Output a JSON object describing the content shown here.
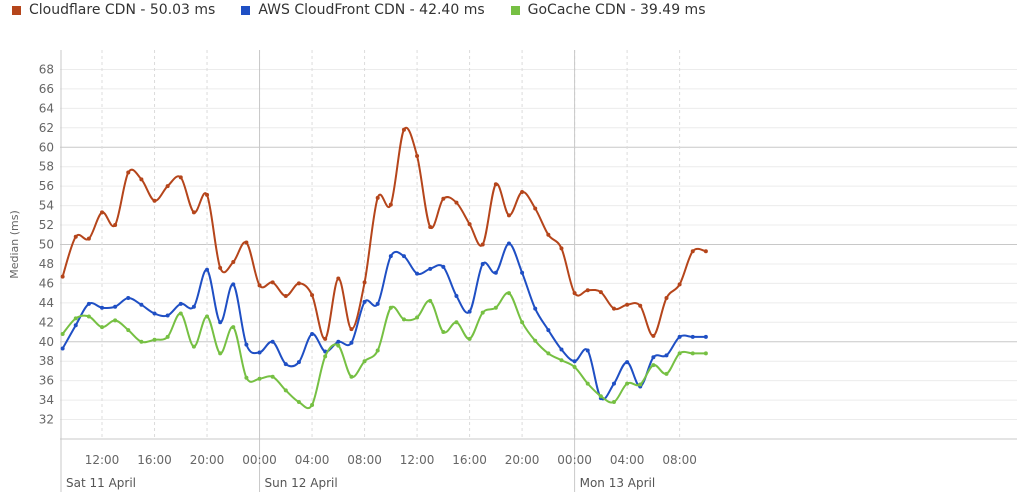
{
  "chart_data": {
    "type": "line",
    "ylabel": "Median (ms)",
    "ylim": [
      30,
      70
    ],
    "yticks": [
      32,
      34,
      36,
      38,
      40,
      42,
      44,
      46,
      48,
      50,
      52,
      54,
      56,
      58,
      60,
      62,
      64,
      66,
      68
    ],
    "xlim_hours": [
      8.8,
      81.7
    ],
    "xticks": [
      {
        "hour": 12,
        "label": "12:00"
      },
      {
        "hour": 16,
        "label": "16:00"
      },
      {
        "hour": 20,
        "label": "20:00"
      },
      {
        "hour": 24,
        "label": "00:00"
      },
      {
        "hour": 28,
        "label": "04:00"
      },
      {
        "hour": 32,
        "label": "08:00"
      },
      {
        "hour": 36,
        "label": "12:00"
      },
      {
        "hour": 40,
        "label": "16:00"
      },
      {
        "hour": 44,
        "label": "20:00"
      },
      {
        "hour": 48,
        "label": "00:00"
      },
      {
        "hour": 52,
        "label": "04:00"
      },
      {
        "hour": 56,
        "label": "08:00"
      }
    ],
    "days": [
      {
        "hour": 9,
        "label": "Sat 11 April"
      },
      {
        "hour": 24,
        "label": "Sun 12 April"
      },
      {
        "hour": 48,
        "label": "Mon 13 April"
      }
    ],
    "grid": true,
    "legend_position": "top-left",
    "series": [
      {
        "name": "Cloudflare CDN - 50.03 ms",
        "color": "#b5451b",
        "hours": [
          9,
          10,
          11,
          12,
          13,
          14,
          15,
          16,
          17,
          18,
          19,
          20,
          21,
          22,
          23,
          24,
          25,
          26,
          27,
          28,
          29,
          30,
          31,
          32,
          33,
          34,
          35,
          36,
          37,
          38,
          39,
          40,
          41,
          42,
          43,
          44,
          45,
          46,
          47,
          48,
          49,
          50,
          51,
          52,
          53,
          54,
          55,
          56,
          57,
          58
        ],
        "values": [
          46.7,
          50.8,
          50.6,
          53.3,
          52.0,
          57.4,
          56.7,
          54.5,
          56.0,
          56.9,
          53.3,
          55.1,
          47.6,
          48.2,
          50.2,
          45.8,
          46.1,
          44.7,
          46.0,
          44.8,
          40.3,
          46.5,
          41.3,
          46.1,
          54.8,
          54.1,
          61.8,
          59.1,
          51.8,
          54.7,
          54.3,
          52.1,
          50.0,
          56.2,
          53.0,
          55.4,
          53.7,
          51.0,
          49.6,
          45.0,
          45.3,
          45.1,
          43.4,
          43.8,
          43.7,
          40.6,
          44.5,
          45.9,
          49.3,
          49.3
        ]
      },
      {
        "name": "AWS CloudFront CDN - 42.40 ms",
        "color": "#1f4fc4",
        "hours": [
          9,
          10,
          11,
          12,
          13,
          14,
          15,
          16,
          17,
          18,
          19,
          20,
          21,
          22,
          23,
          24,
          25,
          26,
          27,
          28,
          29,
          30,
          31,
          32,
          33,
          34,
          35,
          36,
          37,
          38,
          39,
          40,
          41,
          42,
          43,
          44,
          45,
          46,
          47,
          48,
          49,
          50,
          51,
          52,
          53,
          54,
          55,
          56,
          57,
          58
        ],
        "values": [
          39.3,
          41.7,
          43.9,
          43.5,
          43.6,
          44.5,
          43.8,
          42.9,
          42.7,
          43.9,
          43.6,
          47.4,
          42.0,
          45.9,
          39.7,
          38.9,
          40.0,
          37.7,
          37.9,
          40.8,
          39.0,
          40.0,
          39.9,
          44.1,
          43.9,
          48.8,
          48.8,
          47.0,
          47.5,
          47.7,
          44.7,
          43.1,
          48.0,
          47.1,
          50.1,
          47.1,
          43.4,
          41.2,
          39.2,
          38.0,
          39.1,
          34.2,
          35.7,
          37.9,
          35.4,
          38.4,
          38.6,
          40.5,
          40.5,
          40.5
        ]
      },
      {
        "name": "GoCache CDN - 39.49 ms",
        "color": "#76c043",
        "hours": [
          9,
          10,
          11,
          12,
          13,
          14,
          15,
          16,
          17,
          18,
          19,
          20,
          21,
          22,
          23,
          24,
          25,
          26,
          27,
          28,
          29,
          30,
          31,
          32,
          33,
          34,
          35,
          36,
          37,
          38,
          39,
          40,
          41,
          42,
          43,
          44,
          45,
          46,
          47,
          48,
          49,
          50,
          51,
          52,
          53,
          54,
          55,
          56,
          57,
          58
        ],
        "values": [
          40.8,
          42.4,
          42.6,
          41.5,
          42.2,
          41.2,
          40.0,
          40.2,
          40.5,
          42.9,
          39.5,
          42.6,
          38.8,
          41.5,
          36.3,
          36.2,
          36.4,
          35.0,
          33.8,
          33.5,
          38.5,
          39.6,
          36.4,
          38.0,
          39.1,
          43.5,
          42.3,
          42.5,
          44.2,
          41.0,
          42.0,
          40.3,
          43.0,
          43.5,
          45.0,
          42.0,
          40.1,
          38.8,
          38.1,
          37.4,
          35.7,
          34.4,
          33.8,
          35.7,
          35.6,
          37.6,
          36.7,
          38.8,
          38.8,
          38.8
        ]
      }
    ]
  }
}
